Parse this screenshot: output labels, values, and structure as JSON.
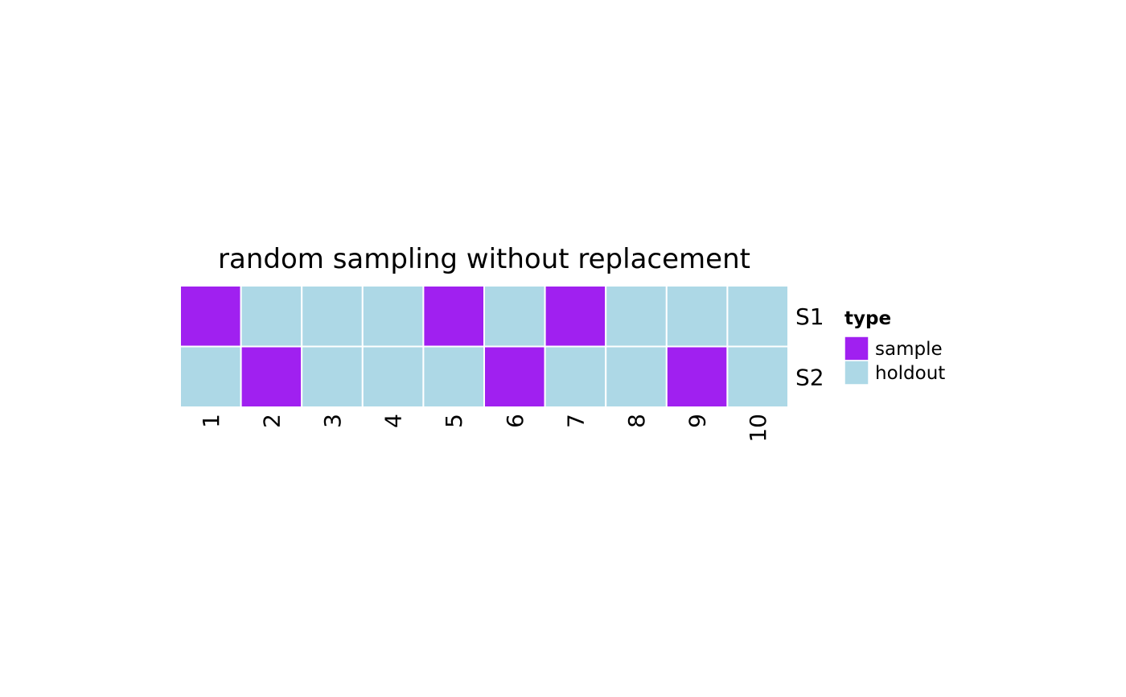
{
  "chart_data": {
    "type": "heatmap",
    "title": "random sampling without replacement",
    "xlabel": "",
    "ylabel": "",
    "x": [
      "1",
      "2",
      "3",
      "4",
      "5",
      "6",
      "7",
      "8",
      "9",
      "10"
    ],
    "y": [
      "S1",
      "S2"
    ],
    "values": [
      [
        "sample",
        "holdout",
        "holdout",
        "holdout",
        "sample",
        "holdout",
        "sample",
        "holdout",
        "holdout",
        "holdout"
      ],
      [
        "holdout",
        "sample",
        "holdout",
        "holdout",
        "holdout",
        "sample",
        "holdout",
        "holdout",
        "sample",
        "holdout"
      ]
    ],
    "legend": {
      "title": "type",
      "position": "right",
      "entries": [
        {
          "label": "sample",
          "color": "#A020F0"
        },
        {
          "label": "holdout",
          "color": "#ADD8E6"
        }
      ]
    },
    "grid": false
  }
}
